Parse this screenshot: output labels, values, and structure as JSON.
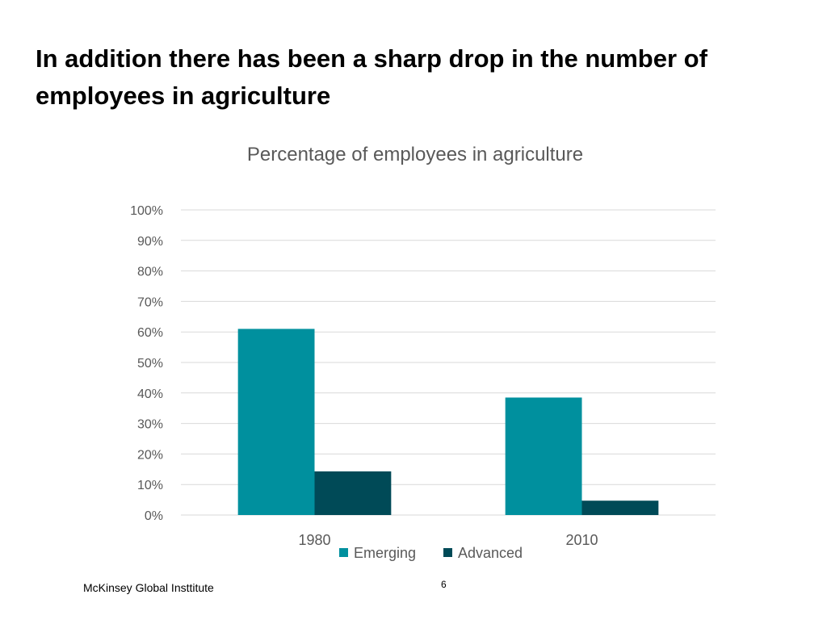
{
  "slide": {
    "title": "In addition there has been a sharp drop in the number of employees in agriculture",
    "footer_source": "McKinsey Global Insttitute",
    "page_number": "6"
  },
  "chart_data": {
    "type": "bar",
    "title": "Percentage of employees in agriculture",
    "categories": [
      "1980",
      "2010"
    ],
    "series": [
      {
        "name": "Emerging",
        "values": [
          61,
          38.5
        ],
        "color": "#00909e"
      },
      {
        "name": "Advanced",
        "values": [
          14.3,
          4.7
        ],
        "color": "#004a57"
      }
    ],
    "ylim": [
      0,
      100
    ],
    "yticks": [
      "0%",
      "10%",
      "20%",
      "30%",
      "40%",
      "50%",
      "60%",
      "70%",
      "80%",
      "90%",
      "100%"
    ],
    "xlabel": "",
    "ylabel": "",
    "grid": true,
    "legend": "bottom",
    "colors": {
      "gridline": "#d9d9d9",
      "tick_text": "#595959",
      "title_text": "#595959"
    }
  }
}
